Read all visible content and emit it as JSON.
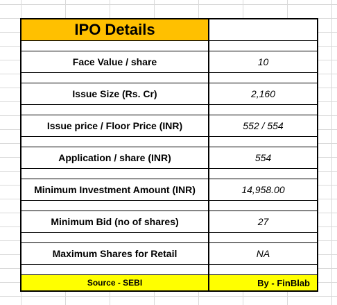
{
  "table": {
    "title": "IPO Details",
    "rows": [
      {
        "label": "Face Value / share",
        "value": "10"
      },
      {
        "label": "Issue Size (Rs. Cr)",
        "value": "2,160"
      },
      {
        "label": "Issue price / Floor Price (INR)",
        "value": "552 / 554"
      },
      {
        "label": "Application / share (INR)",
        "value": "554"
      },
      {
        "label": "Minimum Investment Amount (INR)",
        "value": "14,958.00"
      },
      {
        "label": "Minimum Bid (no of shares)",
        "value": "27"
      },
      {
        "label": "Maximum Shares for Retail",
        "value": "NA"
      }
    ],
    "footer": {
      "source": "Source - SEBI",
      "by": "By - FinBlab"
    }
  },
  "colors": {
    "title_fill": "#ffc000",
    "footer_fill": "#ffff00",
    "border": "#000000"
  }
}
